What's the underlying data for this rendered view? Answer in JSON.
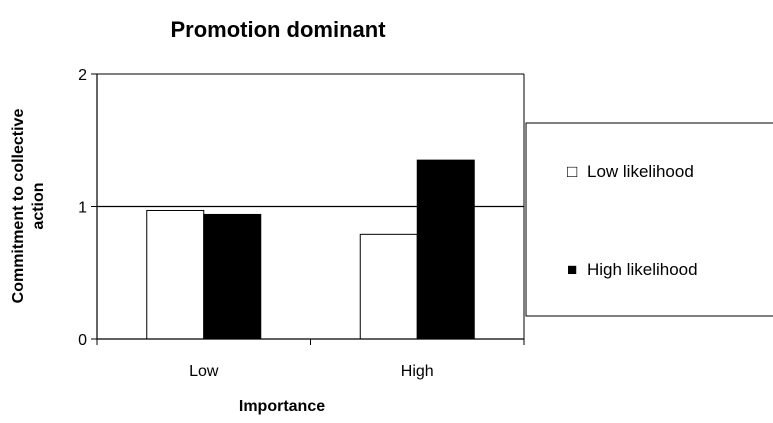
{
  "chart_data": {
    "type": "bar",
    "title": "Promotion dominant",
    "xlabel": "Importance",
    "ylabel_line1": "Commitment to collective",
    "ylabel_line2": "action",
    "categories": [
      "Low",
      "High"
    ],
    "series": [
      {
        "name": "Low likelihood",
        "values": [
          0.97,
          0.79
        ],
        "color": "#ffffff"
      },
      {
        "name": "High likelihood",
        "values": [
          0.94,
          1.35
        ],
        "color": "#000000"
      }
    ],
    "ylim": [
      0,
      2
    ],
    "yticks": [
      0,
      1,
      2
    ],
    "ytick_labels": [
      "0",
      "1",
      "2"
    ],
    "reference_line": 1,
    "grid": false,
    "legend": {
      "position": "right",
      "items": [
        {
          "label": "Low likelihood",
          "symbol": "□"
        },
        {
          "label": "High likelihood",
          "symbol": "■"
        }
      ]
    }
  }
}
